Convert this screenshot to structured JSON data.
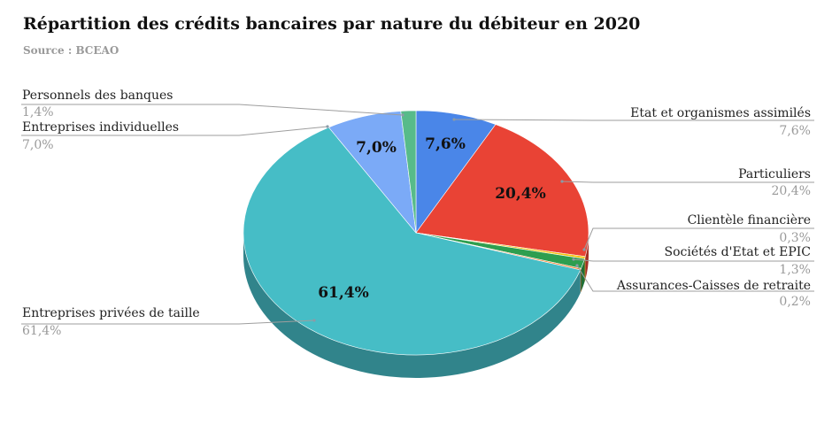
{
  "title": "Répartition des crédits bancaires par nature du débiteur en 2020",
  "subtitle": "Source : BCEAO",
  "chart_data": {
    "type": "pie",
    "title": "Répartition des crédits bancaires par nature du débiteur en 2020",
    "subtitle": "Source : BCEAO",
    "style": "3d",
    "slices": [
      {
        "label": "Etat et organismes assimilés",
        "value": 7.6,
        "value_label": "7,6%",
        "inner_label": "7,6%",
        "color": "#4a86e8"
      },
      {
        "label": "Particuliers",
        "value": 20.4,
        "value_label": "20,4%",
        "inner_label": "20,4%",
        "color": "#e94335"
      },
      {
        "label": "Clientèle financière",
        "value": 0.3,
        "value_label": "0,3%",
        "inner_label": "",
        "color": "#f4c20d"
      },
      {
        "label": "Sociétés d'Etat et EPIC",
        "value": 1.3,
        "value_label": "1,3%",
        "inner_label": "",
        "color": "#2e9e4f"
      },
      {
        "label": "Assurances-Caisses de retraite",
        "value": 0.2,
        "value_label": "0,2%",
        "inner_label": "",
        "color": "#ff7f2a"
      },
      {
        "label": "Entreprises privées de taille",
        "value": 61.4,
        "value_label": "61,4%",
        "inner_label": "61,4%",
        "color": "#46bdc6"
      },
      {
        "label": "Entreprises individuelles",
        "value": 7.0,
        "value_label": "7,0%",
        "inner_label": "7,0%",
        "color": "#7baaf7"
      },
      {
        "label": "Personnels des banques",
        "value": 1.4,
        "value_label": "1,4%",
        "inner_label": "",
        "color": "#57bb8a"
      }
    ]
  }
}
